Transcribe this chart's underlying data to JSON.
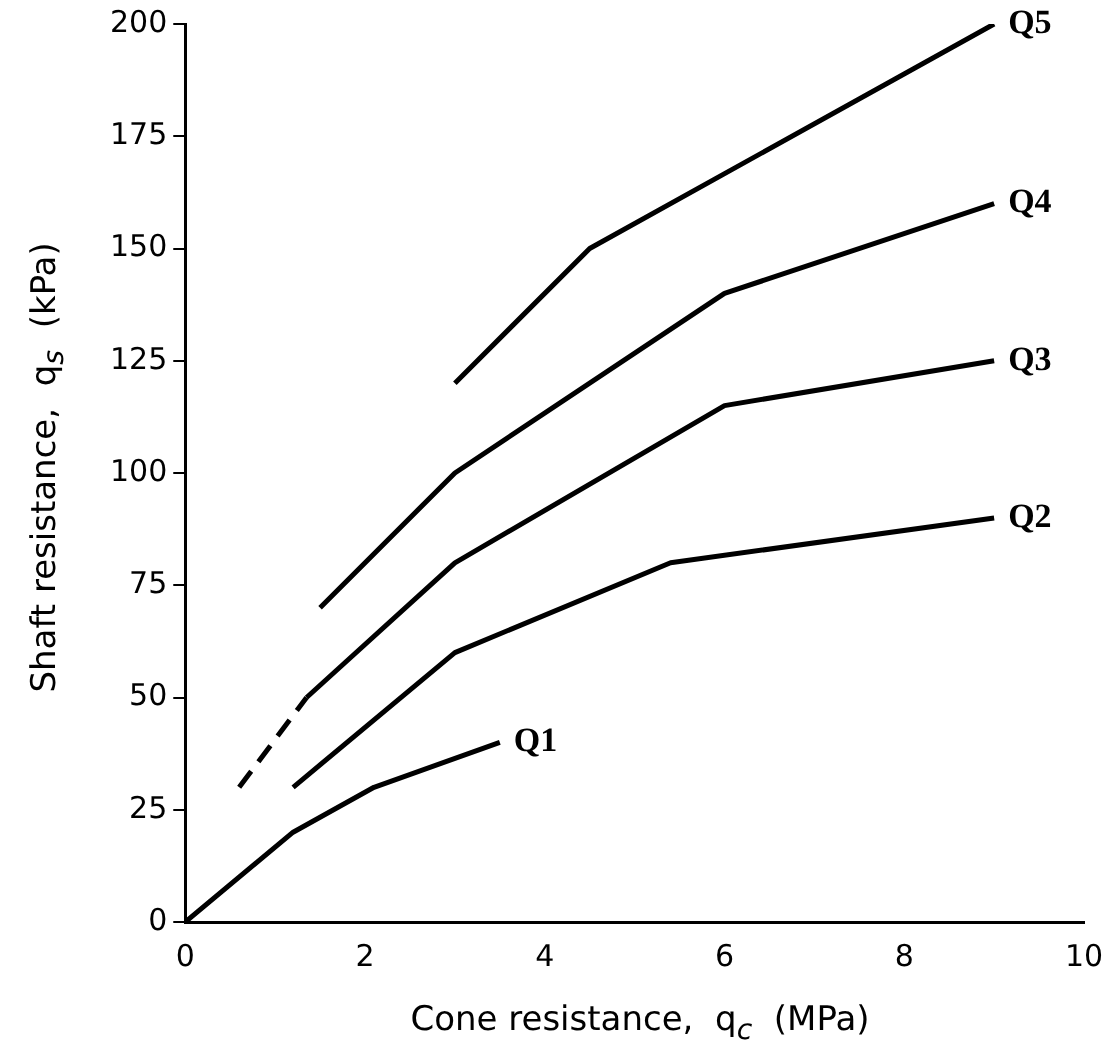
{
  "chart_data": {
    "type": "line",
    "xlabel": "Cone resistance,  q$_{c}$  (MPa)",
    "ylabel": "Shaft resistance,  q$_{s}$  (kPa)",
    "series": [
      {
        "name": "Q1",
        "color": "#000000",
        "x": [
          0,
          1.2,
          2.1,
          3.5
        ],
        "values": [
          0,
          20,
          30,
          40
        ]
      },
      {
        "name": "Q2",
        "color": "#000000",
        "x": [
          1.2,
          3,
          5.4,
          9
        ],
        "values": [
          30,
          60,
          80,
          90
        ]
      },
      {
        "color": "#000000",
        "x": [
          0.6,
          1.35
        ],
        "values": [
          30,
          50
        ],
        "line_style": "dashed"
      },
      {
        "name": "Q3",
        "color": "#000000",
        "x": [
          1.35,
          3,
          6,
          9
        ],
        "values": [
          50,
          80,
          115,
          125
        ]
      },
      {
        "name": "Q4",
        "color": "#000000",
        "x": [
          1.5,
          3,
          6,
          9
        ],
        "values": [
          70,
          100,
          140,
          160
        ]
      },
      {
        "name": "Q5",
        "color": "#000000",
        "x": [
          3,
          4.5,
          9
        ],
        "values": [
          120,
          150,
          200
        ]
      }
    ],
    "xlim": [
      0,
      10
    ],
    "xticks": [
      0,
      2,
      4,
      6,
      8,
      10
    ],
    "ylim": [
      0,
      200
    ],
    "yticks": [
      0,
      25,
      50,
      75,
      100,
      125,
      150,
      175,
      200
    ],
    "grid": false,
    "legend": false,
    "marker": "none",
    "line_style": "solid"
  }
}
